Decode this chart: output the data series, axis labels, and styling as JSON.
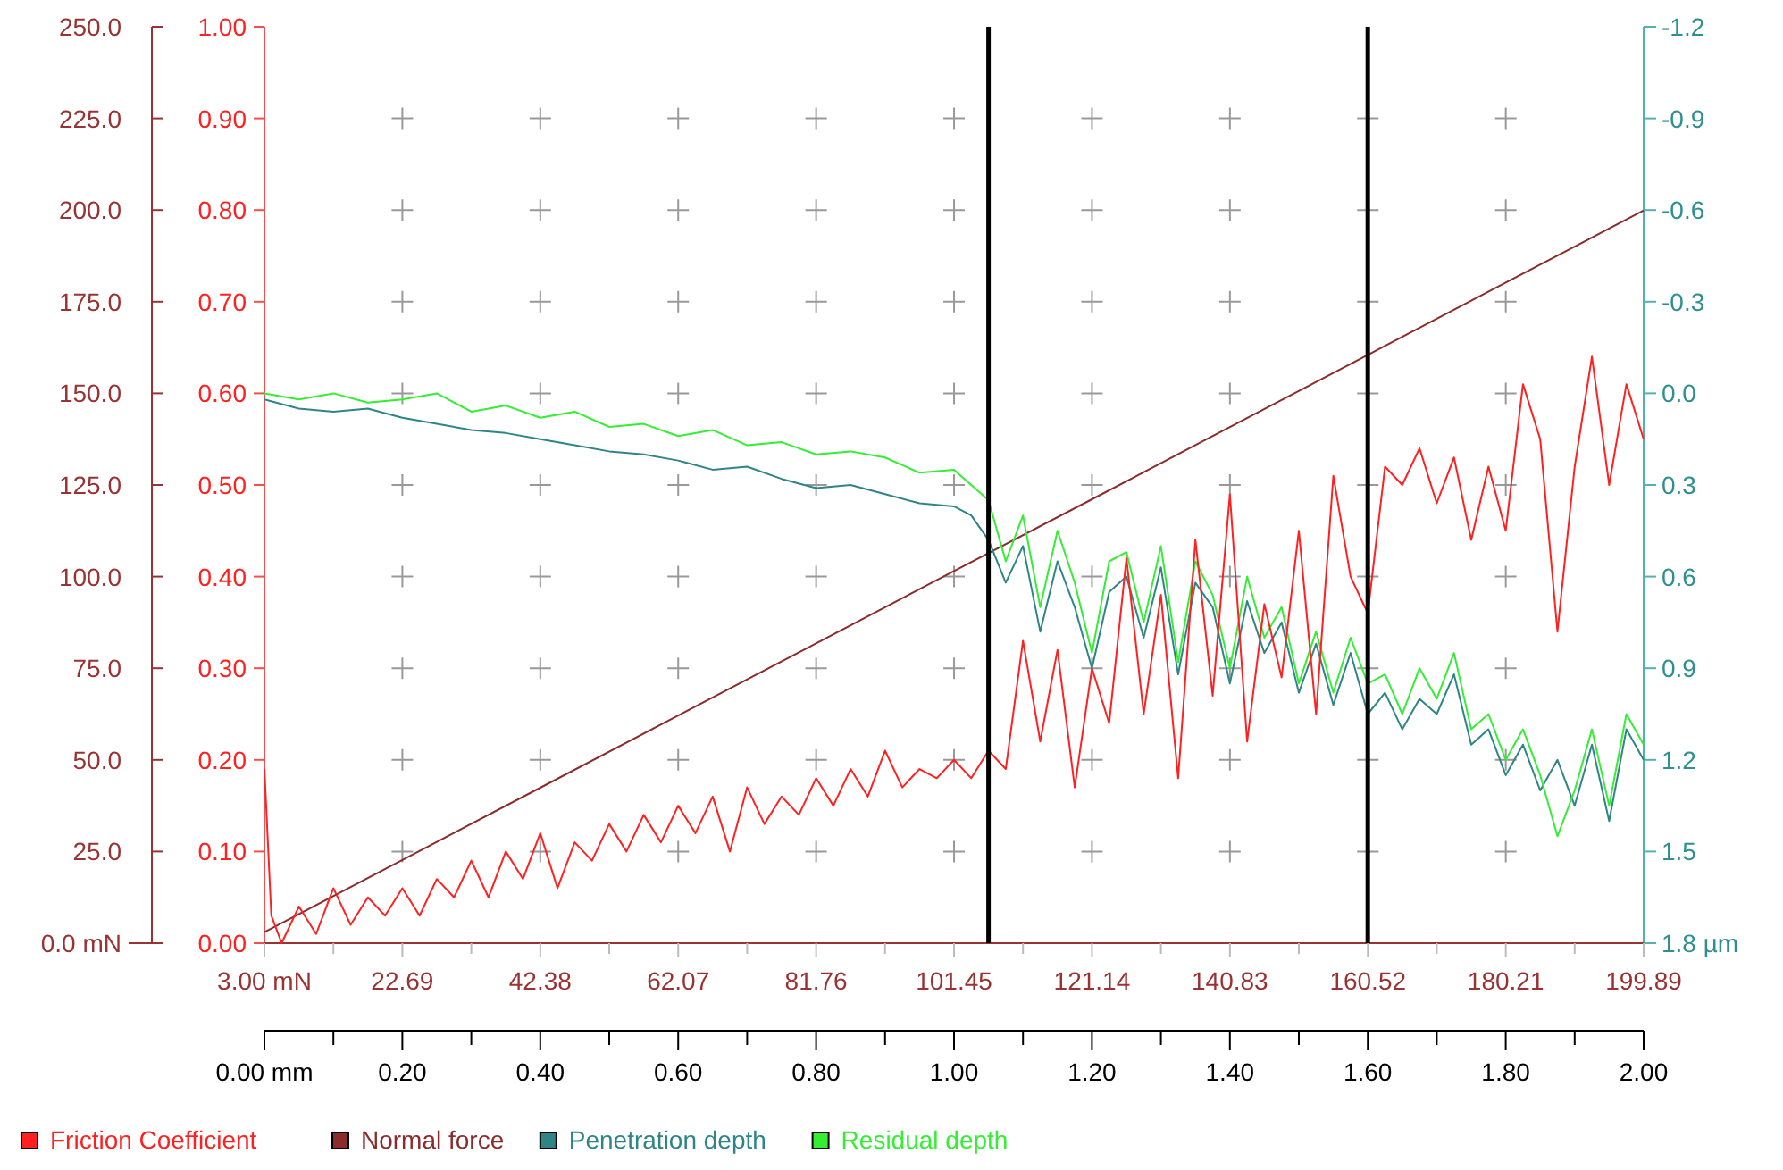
{
  "chart_data": {
    "type": "line",
    "xlim": [
      0,
      2
    ],
    "xticks": [
      {
        "value": 0,
        "label": "0.00 mm"
      },
      {
        "value": 0.1,
        "label": null
      },
      {
        "value": 0.2,
        "label": "0.20"
      },
      {
        "value": 0.3,
        "label": null
      },
      {
        "value": 0.4,
        "label": "0.40"
      },
      {
        "value": 0.5,
        "label": null
      },
      {
        "value": 0.6,
        "label": "0.60"
      },
      {
        "value": 0.7,
        "label": null
      },
      {
        "value": 0.8,
        "label": "0.80"
      },
      {
        "value": 0.9,
        "label": null
      },
      {
        "value": 1,
        "label": "1.00"
      },
      {
        "value": 1.1,
        "label": null
      },
      {
        "value": 1.2,
        "label": "1.20"
      },
      {
        "value": 1.3,
        "label": null
      },
      {
        "value": 1.4,
        "label": "1.40"
      },
      {
        "value": 1.5,
        "label": null
      },
      {
        "value": 1.6,
        "label": "1.60"
      },
      {
        "value": 1.7,
        "label": null
      },
      {
        "value": 1.8,
        "label": "1.80"
      },
      {
        "value": 1.9,
        "label": null
      },
      {
        "value": 2,
        "label": "2.00"
      }
    ],
    "x2lim": [
      3.0,
      199.89
    ],
    "x2ticks": [
      {
        "value": 3.0,
        "label": "3.00 mN"
      },
      22.69,
      42.38,
      62.07,
      81.76,
      101.45,
      121.14,
      140.83,
      160.52,
      180.21,
      199.89
    ],
    "ylim": [
      0,
      250
    ],
    "yticks": [
      {
        "value": 0,
        "label": "0.0 mN"
      },
      {
        "value": 25,
        "label": "25.0"
      },
      {
        "value": 50,
        "label": "50.0"
      },
      {
        "value": 75,
        "label": "75.0"
      },
      {
        "value": 100,
        "label": "100.0"
      },
      {
        "value": 125,
        "label": "125.0"
      },
      {
        "value": 150,
        "label": "150.0"
      },
      {
        "value": 175,
        "label": "175.0"
      },
      {
        "value": 200,
        "label": "200.0"
      },
      {
        "value": 225,
        "label": "225.0"
      },
      {
        "value": 250,
        "label": "250.0"
      }
    ],
    "y2lim": [
      0,
      1
    ],
    "y2ticks": [
      {
        "value": 0,
        "label": "0.00"
      },
      {
        "value": 0.1,
        "label": "0.10"
      },
      {
        "value": 0.2,
        "label": "0.20"
      },
      {
        "value": 0.3,
        "label": "0.30"
      },
      {
        "value": 0.4,
        "label": "0.40"
      },
      {
        "value": 0.5,
        "label": "0.50"
      },
      {
        "value": 0.6,
        "label": "0.60"
      },
      {
        "value": 0.7,
        "label": "0.70"
      },
      {
        "value": 0.8,
        "label": "0.80"
      },
      {
        "value": 0.9,
        "label": "0.90"
      },
      {
        "value": 1,
        "label": "1.00"
      }
    ],
    "y3lim": [
      1.8,
      -1.2
    ],
    "y3ticks": [
      {
        "value": 1.8,
        "label": "1.8 µm"
      },
      1.5,
      1.2,
      0.9,
      0.6,
      0.3,
      {
        "value": 0,
        "label": "0.0"
      },
      -0.3,
      -0.6,
      -0.9,
      -1.2
    ],
    "grid": true,
    "legend": "bottom",
    "ref_lines": [
      {
        "axis": "x",
        "value": 1.05,
        "color": "#000000"
      },
      {
        "axis": "x",
        "value": 1.6,
        "color": "#000000"
      }
    ],
    "series": [
      {
        "name": "Friction Coefficient",
        "color": "#ff2020",
        "axis": "y2",
        "x": [
          0,
          0.01,
          0.025,
          0.05,
          0.075,
          0.1,
          0.125,
          0.15,
          0.175,
          0.2,
          0.225,
          0.25,
          0.275,
          0.3,
          0.325,
          0.35,
          0.375,
          0.4,
          0.425,
          0.45,
          0.475,
          0.5,
          0.525,
          0.55,
          0.575,
          0.6,
          0.625,
          0.65,
          0.675,
          0.7,
          0.725,
          0.75,
          0.775,
          0.8,
          0.825,
          0.85,
          0.875,
          0.9,
          0.925,
          0.95,
          0.975,
          1.0,
          1.025,
          1.05,
          1.075,
          1.1,
          1.125,
          1.15,
          1.175,
          1.2,
          1.225,
          1.25,
          1.275,
          1.3,
          1.325,
          1.35,
          1.375,
          1.4,
          1.425,
          1.45,
          1.475,
          1.5,
          1.525,
          1.55,
          1.575,
          1.6,
          1.625,
          1.65,
          1.675,
          1.7,
          1.725,
          1.75,
          1.775,
          1.8,
          1.825,
          1.85,
          1.875,
          1.9,
          1.925,
          1.95,
          1.975,
          2.0
        ],
        "values": [
          0.19,
          0.03,
          0.0,
          0.04,
          0.01,
          0.06,
          0.02,
          0.05,
          0.03,
          0.06,
          0.03,
          0.07,
          0.05,
          0.09,
          0.05,
          0.1,
          0.07,
          0.12,
          0.06,
          0.11,
          0.09,
          0.13,
          0.1,
          0.14,
          0.11,
          0.15,
          0.12,
          0.16,
          0.1,
          0.17,
          0.13,
          0.16,
          0.14,
          0.18,
          0.15,
          0.19,
          0.16,
          0.21,
          0.17,
          0.19,
          0.18,
          0.2,
          0.18,
          0.21,
          0.19,
          0.33,
          0.22,
          0.32,
          0.17,
          0.3,
          0.24,
          0.42,
          0.25,
          0.38,
          0.18,
          0.44,
          0.27,
          0.49,
          0.22,
          0.37,
          0.29,
          0.45,
          0.25,
          0.51,
          0.4,
          0.36,
          0.52,
          0.5,
          0.54,
          0.48,
          0.53,
          0.44,
          0.52,
          0.45,
          0.61,
          0.55,
          0.34,
          0.52,
          0.64,
          0.5,
          0.61,
          0.55
        ]
      },
      {
        "name": "Normal force",
        "color": "#8b2c2c",
        "axis": "y",
        "x": [
          0,
          0.2,
          0.4,
          0.6,
          0.8,
          1.0,
          1.2,
          1.4,
          1.6,
          1.8,
          2.0
        ],
        "values": [
          3,
          22.7,
          42.4,
          62.1,
          81.8,
          101.5,
          121.1,
          140.8,
          160.5,
          180.2,
          199.9
        ]
      },
      {
        "name": "Penetration depth",
        "color": "#2f8585",
        "axis": "y3",
        "x": [
          0,
          0.05,
          0.1,
          0.15,
          0.2,
          0.25,
          0.3,
          0.35,
          0.4,
          0.45,
          0.5,
          0.55,
          0.6,
          0.65,
          0.7,
          0.75,
          0.8,
          0.85,
          0.9,
          0.95,
          1.0,
          1.025,
          1.05,
          1.075,
          1.1,
          1.125,
          1.15,
          1.175,
          1.2,
          1.225,
          1.25,
          1.275,
          1.3,
          1.325,
          1.35,
          1.375,
          1.4,
          1.425,
          1.45,
          1.475,
          1.5,
          1.525,
          1.55,
          1.575,
          1.6,
          1.625,
          1.65,
          1.675,
          1.7,
          1.725,
          1.75,
          1.775,
          1.8,
          1.825,
          1.85,
          1.875,
          1.9,
          1.925,
          1.95,
          1.975,
          2.0
        ],
        "values": [
          0.02,
          0.05,
          0.06,
          0.05,
          0.08,
          0.1,
          0.12,
          0.13,
          0.15,
          0.17,
          0.19,
          0.2,
          0.22,
          0.25,
          0.24,
          0.28,
          0.31,
          0.3,
          0.33,
          0.36,
          0.37,
          0.4,
          0.48,
          0.62,
          0.5,
          0.78,
          0.55,
          0.7,
          0.9,
          0.65,
          0.6,
          0.8,
          0.57,
          0.92,
          0.62,
          0.7,
          0.95,
          0.68,
          0.85,
          0.75,
          0.98,
          0.82,
          1.02,
          0.85,
          1.05,
          0.98,
          1.1,
          1.0,
          1.05,
          0.92,
          1.15,
          1.1,
          1.25,
          1.15,
          1.3,
          1.2,
          1.35,
          1.15,
          1.4,
          1.1,
          1.2
        ]
      },
      {
        "name": "Residual depth",
        "color": "#33ee33",
        "axis": "y3",
        "x": [
          0,
          0.05,
          0.1,
          0.15,
          0.2,
          0.25,
          0.3,
          0.35,
          0.4,
          0.45,
          0.5,
          0.55,
          0.6,
          0.65,
          0.7,
          0.75,
          0.8,
          0.85,
          0.9,
          0.95,
          1.0,
          1.025,
          1.05,
          1.075,
          1.1,
          1.125,
          1.15,
          1.175,
          1.2,
          1.225,
          1.25,
          1.275,
          1.3,
          1.325,
          1.35,
          1.375,
          1.4,
          1.425,
          1.45,
          1.475,
          1.5,
          1.525,
          1.55,
          1.575,
          1.6,
          1.625,
          1.65,
          1.675,
          1.7,
          1.725,
          1.75,
          1.775,
          1.8,
          1.825,
          1.85,
          1.875,
          1.9,
          1.925,
          1.95,
          1.975,
          2.0
        ],
        "values": [
          0.0,
          0.02,
          0.0,
          0.03,
          0.02,
          0.0,
          0.06,
          0.04,
          0.08,
          0.06,
          0.11,
          0.1,
          0.14,
          0.12,
          0.17,
          0.16,
          0.2,
          0.19,
          0.21,
          0.26,
          0.25,
          0.3,
          0.35,
          0.55,
          0.4,
          0.7,
          0.45,
          0.62,
          0.85,
          0.55,
          0.52,
          0.75,
          0.5,
          0.88,
          0.55,
          0.66,
          0.9,
          0.6,
          0.8,
          0.7,
          0.95,
          0.78,
          0.98,
          0.8,
          0.95,
          0.92,
          1.05,
          0.9,
          1.0,
          0.85,
          1.1,
          1.05,
          1.2,
          1.1,
          1.25,
          1.45,
          1.3,
          1.1,
          1.35,
          1.05,
          1.15
        ]
      }
    ]
  }
}
